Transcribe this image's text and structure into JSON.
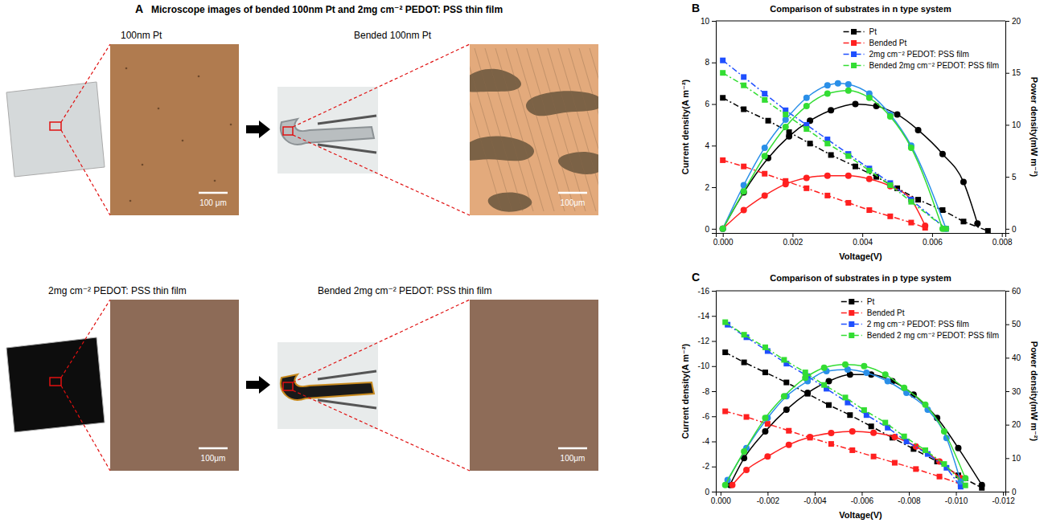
{
  "panel_a": {
    "letter": "A",
    "title": "Microscope images of bended 100nm Pt and 2mg cm⁻² PEDOT: PSS thin film",
    "rows": [
      {
        "label": "100nm Pt",
        "scale_bar": "100 μm",
        "bended_label": "Bended 100nm Pt",
        "bended_scale_bar": "100μm"
      },
      {
        "label": "2mg cm⁻² PEDOT: PSS thin film",
        "scale_bar": "100μm",
        "bended_label": "Bended 2mg cm⁻² PEDOT: PSS thin film",
        "bended_scale_bar": "100μm"
      }
    ]
  },
  "chart_data": [
    {
      "type": "line",
      "letter": "B",
      "title": "Comparison of substrates in n type system",
      "x_label": "Voltage(V)",
      "y_label": "Current density(A m⁻²)",
      "y2_label": "Power density(mW m⁻²)",
      "xlim": [
        -0.0002,
        0.0081
      ],
      "xticks": [
        {
          "value": 0,
          "label": "0.000"
        },
        {
          "value": 0.002,
          "label": "0.002"
        },
        {
          "value": 0.004,
          "label": "0.004"
        },
        {
          "value": 0.006,
          "label": "0.006"
        },
        {
          "value": 0.008,
          "label": "0.008"
        }
      ],
      "ylim": [
        -0.2,
        10
      ],
      "yticks": [
        0,
        2,
        4,
        6,
        8,
        10
      ],
      "y2lim": [
        -0.4,
        20
      ],
      "y2ticks": [
        0,
        5,
        10,
        15,
        20
      ],
      "legend": "top-right",
      "series": [
        {
          "name": "Pt",
          "color": "#000000",
          "marker": "square",
          "line_style": "dashdot",
          "x": [
            0,
            0.0006,
            0.0013,
            0.0019,
            0.0025,
            0.0031,
            0.0038,
            0.0044,
            0.005,
            0.0056,
            0.0063,
            0.0069,
            0.0076
          ],
          "values": [
            6.3,
            5.75,
            5.2,
            4.65,
            4.1,
            3.55,
            3.0,
            2.5,
            1.95,
            1.4,
            0.9,
            0.35,
            -0.1
          ]
        },
        {
          "color": "#000000",
          "marker": "circle",
          "line_style": "solid",
          "axis": "y2",
          "x": [
            0,
            0.0006,
            0.0013,
            0.0019,
            0.0025,
            0.0031,
            0.0038,
            0.0044,
            0.005,
            0.0056,
            0.0063,
            0.0069,
            0.0073
          ],
          "values": [
            0,
            3.5,
            6.8,
            8.9,
            10.4,
            11.4,
            12.0,
            11.8,
            11.0,
            9.5,
            7.2,
            4.5,
            0.5
          ]
        },
        {
          "name": "Bended Pt",
          "color": "#ff2020",
          "marker": "square",
          "line_style": "dashdot",
          "x": [
            0,
            0.0006,
            0.0012,
            0.0018,
            0.0024,
            0.003,
            0.0036,
            0.0042,
            0.0048,
            0.0054,
            0.0058
          ],
          "values": [
            3.3,
            3.0,
            2.65,
            2.3,
            1.95,
            1.6,
            1.25,
            0.9,
            0.6,
            0.3,
            0.05
          ]
        },
        {
          "color": "#ff2020",
          "marker": "circle",
          "line_style": "solid",
          "axis": "y2",
          "x": [
            0,
            0.0006,
            0.0012,
            0.0018,
            0.0024,
            0.003,
            0.0036,
            0.0042,
            0.0048,
            0.0054,
            0.0058
          ],
          "values": [
            0,
            1.8,
            3.2,
            4.3,
            4.9,
            5.1,
            5.1,
            4.8,
            4.1,
            2.8,
            0.3
          ]
        },
        {
          "name": "2mg cm⁻² PEDOT: PSS film",
          "color": "#1f4fff",
          "marker": "square",
          "line_style": "dashdot",
          "x": [
            0,
            0.0006,
            0.0012,
            0.0018,
            0.0024,
            0.003,
            0.0036,
            0.0042,
            0.0048,
            0.0054,
            0.0064
          ],
          "values": [
            8.1,
            7.3,
            6.5,
            5.7,
            5.0,
            4.3,
            3.6,
            2.9,
            2.2,
            1.4,
            0
          ]
        },
        {
          "color": "#2a8fe8",
          "marker": "circle",
          "line_style": "solid",
          "axis": "y2",
          "x": [
            0,
            0.0006,
            0.0012,
            0.0018,
            0.0024,
            0.003,
            0.0033,
            0.0036,
            0.0042,
            0.0048,
            0.0054,
            0.0064
          ],
          "values": [
            0,
            4.2,
            7.8,
            10.5,
            12.6,
            13.8,
            14.0,
            13.9,
            13.0,
            11.0,
            8.0,
            0
          ]
        },
        {
          "name": "Bended 2mg cm⁻² PEDOT: PSS film",
          "color": "#33dd33",
          "marker": "square",
          "line_style": "dashdot",
          "x": [
            0,
            0.0006,
            0.0012,
            0.0018,
            0.0024,
            0.003,
            0.0036,
            0.0042,
            0.0048,
            0.0054,
            0.0064
          ],
          "values": [
            7.5,
            6.9,
            6.2,
            5.5,
            4.8,
            4.1,
            3.5,
            2.8,
            2.1,
            1.3,
            0
          ]
        },
        {
          "color": "#33dd33",
          "marker": "circle",
          "line_style": "solid",
          "axis": "y2",
          "x": [
            0,
            0.0006,
            0.0012,
            0.0018,
            0.0024,
            0.003,
            0.0036,
            0.0042,
            0.0048,
            0.0054,
            0.0063
          ],
          "values": [
            0,
            3.6,
            7.0,
            9.8,
            11.8,
            13.0,
            13.3,
            12.6,
            10.8,
            7.8,
            0
          ]
        }
      ]
    },
    {
      "type": "line",
      "letter": "C",
      "title": "Comparison of substrates in p type system",
      "x_label": "Voltage(V)",
      "y_label": "Current density(A m⁻²)",
      "y2_label": "Power density(mW m⁻²)",
      "xlim": [
        0.0002,
        -0.0121
      ],
      "xticks": [
        {
          "value": 0,
          "label": "0.000"
        },
        {
          "value": -0.002,
          "label": "-0.002"
        },
        {
          "value": -0.004,
          "label": "-0.004"
        },
        {
          "value": -0.006,
          "label": "-0.006"
        },
        {
          "value": -0.008,
          "label": "-0.008"
        },
        {
          "value": -0.01,
          "label": "-0.010"
        },
        {
          "value": -0.012,
          "label": "-0.012"
        }
      ],
      "ylim": [
        0,
        -16
      ],
      "yticks": [
        0,
        -2,
        -4,
        -6,
        -8,
        -10,
        -12,
        -14,
        -16
      ],
      "y2lim": [
        0,
        60
      ],
      "y2ticks": [
        0,
        10,
        20,
        30,
        40,
        50,
        60
      ],
      "legend": "top-right",
      "series": [
        {
          "name": "Pt",
          "color": "#000000",
          "marker": "square",
          "line_style": "dashdot",
          "x": [
            -0.0002,
            -0.001,
            -0.0019,
            -0.0028,
            -0.0037,
            -0.0046,
            -0.0055,
            -0.0064,
            -0.0073,
            -0.0082,
            -0.0092,
            -0.0101,
            -0.0111
          ],
          "values": [
            -11.1,
            -10.3,
            -9.5,
            -8.7,
            -7.8,
            -6.9,
            -6.1,
            -5.2,
            -4.3,
            -3.4,
            -2.4,
            -1.3,
            -0.3
          ]
        },
        {
          "color": "#000000",
          "marker": "circle",
          "line_style": "solid",
          "axis": "y2",
          "x": [
            -0.0004,
            -0.001,
            -0.0019,
            -0.0028,
            -0.0037,
            -0.0046,
            -0.0055,
            -0.0064,
            -0.0073,
            -0.0082,
            -0.0092,
            -0.0101,
            -0.0111
          ],
          "values": [
            2,
            10,
            18,
            24.5,
            29.5,
            33,
            35,
            35,
            33,
            29,
            22,
            13,
            2
          ]
        },
        {
          "name": "Bended Pt",
          "color": "#ff2020",
          "marker": "square",
          "line_style": "dashdot",
          "x": [
            -0.0002,
            -0.0011,
            -0.002,
            -0.0029,
            -0.0038,
            -0.0047,
            -0.0056,
            -0.0065,
            -0.0074,
            -0.0083,
            -0.0093,
            -0.0102
          ],
          "values": [
            -6.4,
            -5.95,
            -5.4,
            -4.85,
            -4.3,
            -3.8,
            -3.3,
            -2.8,
            -2.3,
            -1.8,
            -1.2,
            -0.6
          ]
        },
        {
          "color": "#ff2020",
          "marker": "circle",
          "line_style": "solid",
          "axis": "y2",
          "x": [
            -0.0005,
            -0.0011,
            -0.002,
            -0.0029,
            -0.0038,
            -0.0047,
            -0.0056,
            -0.0065,
            -0.0074,
            -0.0083,
            -0.0093,
            -0.0102
          ],
          "values": [
            2,
            6.5,
            10.5,
            14,
            16.3,
            17.5,
            18,
            17.6,
            16.3,
            13.5,
            9,
            4
          ]
        },
        {
          "name": "2 mg cm⁻² PEDOT: PSS film",
          "color": "#1f4fff",
          "marker": "square",
          "line_style": "dashdot",
          "x": [
            -0.0003,
            -0.0011,
            -0.002,
            -0.0028,
            -0.0037,
            -0.0045,
            -0.0054,
            -0.0062,
            -0.0071,
            -0.0079,
            -0.0088,
            -0.0096,
            -0.0102
          ],
          "values": [
            -13.3,
            -12.3,
            -11.2,
            -10.2,
            -9.2,
            -8.2,
            -7.1,
            -6.1,
            -5.1,
            -4.0,
            -3.0,
            -1.9,
            -0.4
          ]
        },
        {
          "color": "#2a8fe8",
          "marker": "circle",
          "line_style": "solid",
          "axis": "y2",
          "x": [
            -0.0003,
            -0.0011,
            -0.002,
            -0.0028,
            -0.0037,
            -0.0045,
            -0.0054,
            -0.0062,
            -0.0071,
            -0.0079,
            -0.0088,
            -0.0096,
            -0.0102
          ],
          "values": [
            3.5,
            13,
            22,
            28.5,
            33,
            36,
            36.5,
            35.5,
            33,
            29.5,
            24.5,
            16,
            3
          ]
        },
        {
          "name": "Bended 2 mg cm⁻² PEDOT: PSS film",
          "color": "#33dd33",
          "marker": "square",
          "line_style": "dashdot",
          "x": [
            -0.0002,
            -0.001,
            -0.0019,
            -0.0027,
            -0.0036,
            -0.0044,
            -0.0053,
            -0.0061,
            -0.007,
            -0.0078,
            -0.0087,
            -0.0095,
            -0.0104
          ],
          "values": [
            -13.5,
            -12.5,
            -11.5,
            -10.5,
            -9.5,
            -8.5,
            -7.5,
            -6.5,
            -5.5,
            -4.4,
            -3.3,
            -2.2,
            -0.5
          ]
        },
        {
          "color": "#33dd33",
          "marker": "circle",
          "line_style": "solid",
          "axis": "y2",
          "x": [
            -0.0002,
            -0.001,
            -0.0019,
            -0.0027,
            -0.0036,
            -0.0044,
            -0.0053,
            -0.0061,
            -0.007,
            -0.0078,
            -0.0087,
            -0.0095,
            -0.0104
          ],
          "values": [
            2,
            12,
            22,
            28.5,
            34,
            37,
            38,
            37.5,
            35,
            31,
            26,
            18,
            4
          ]
        }
      ]
    }
  ]
}
